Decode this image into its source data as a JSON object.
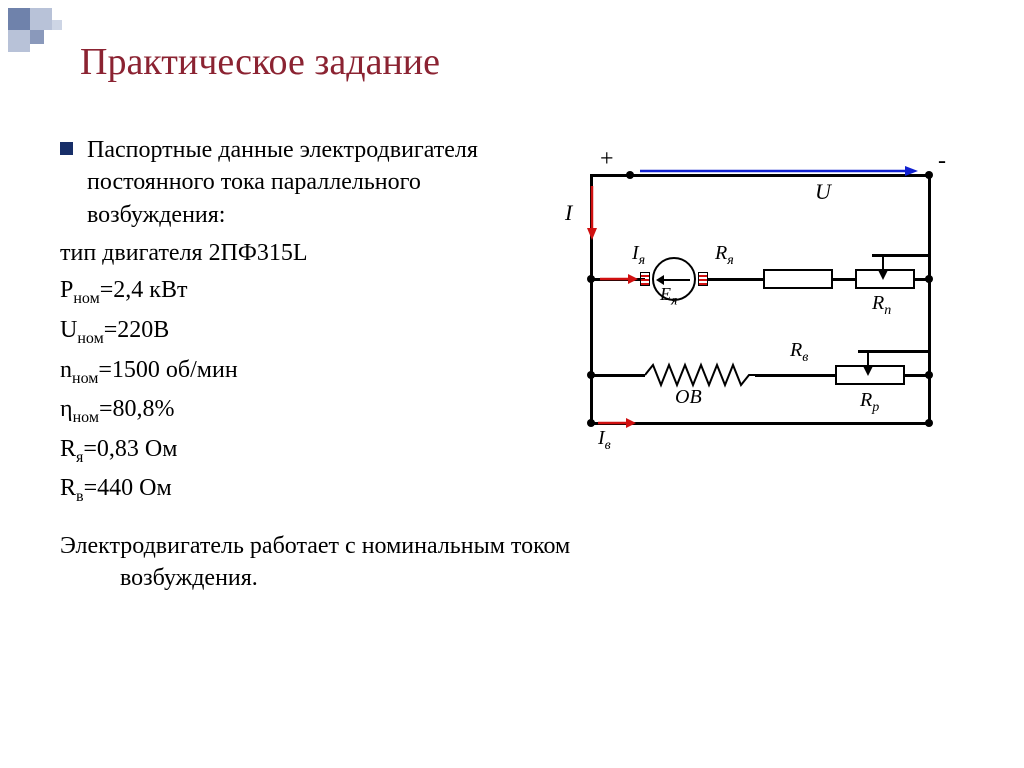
{
  "title": "Практическое задание",
  "intro": "Паспортные данные электродвигателя постоянного тока параллельного возбуждения:",
  "params": {
    "motor_type_label": "тип двигателя",
    "motor_type": "2ПФ315L",
    "P_label": "P",
    "P_sub": "ном",
    "P_val": "=2,4 кВт",
    "U_label": "U",
    "U_sub": "ном",
    "U_val": "=220В",
    "n_label": "n",
    "n_sub": "ном",
    "n_val": "=1500 об/мин",
    "eta_label": "η",
    "eta_sub": "ном",
    "eta_val": "=80,8%",
    "Ra_label": "R",
    "Ra_sub": "я",
    "Ra_val": "=0,83 Ом",
    "Rv_label": "R",
    "Rv_sub": "в",
    "Rv_val": "=440 Ом"
  },
  "bottom_text_1": "Электродвигатель работает с номинальным током",
  "bottom_text_2": "возбуждения.",
  "circuit": {
    "plus": "+",
    "minus": "-",
    "U": "U",
    "I": "I",
    "Iya": "Iя",
    "Rya": "Rя",
    "Eya": "Eя",
    "Rn": "Rn",
    "Rv": "Rв",
    "OB": "ОВ",
    "Iv": "Iв",
    "Rp": "Rр",
    "colors": {
      "wire": "#000000",
      "U_arrow": "#1020d0",
      "I_arrow": "#d01010"
    }
  }
}
